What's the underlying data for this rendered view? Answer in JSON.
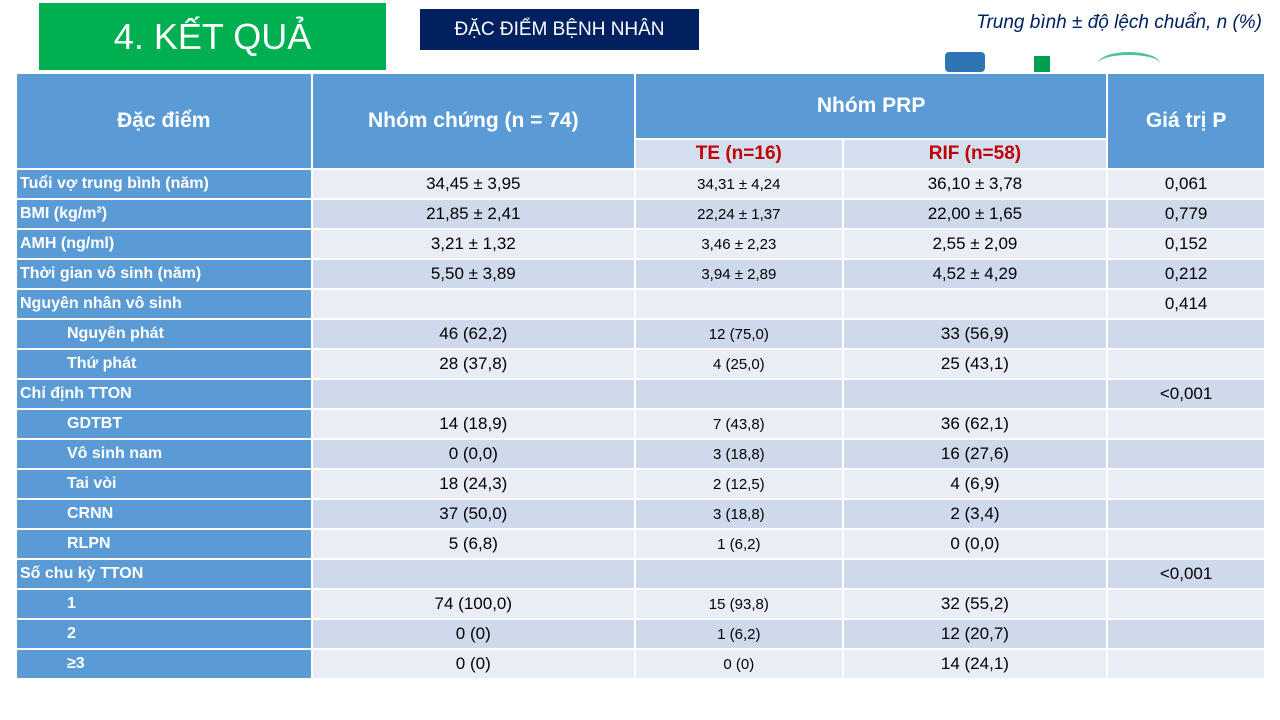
{
  "title": "4. KẾT QUẢ",
  "subtitle": "ĐẶC ĐIỂM BỆNH NHÂN",
  "note": "Trung bình ± độ lệch chuẩn, n (%)",
  "header": {
    "col1": "Đặc điểm",
    "col2": "Nhóm chứng (n = 74)",
    "group": "Nhóm PRP",
    "te": "TE (n=16)",
    "rif": "RIF (n=58)",
    "p": "Giá trị P"
  },
  "rows": [
    {
      "label": "Tuổi vợ trung bình (năm)",
      "control": "34,45 ± 3,95",
      "te": "34,31 ± 4,24",
      "rif": "36,10 ± 3,78",
      "p": "0,061"
    },
    {
      "label": "BMI (kg/m²)",
      "control": "21,85 ± 2,41",
      "te": "22,24 ± 1,37",
      "rif": "22,00 ± 1,65",
      "p": "0,779"
    },
    {
      "label": "AMH (ng/ml)",
      "control": "3,21 ± 1,32",
      "te": "3,46 ± 2,23",
      "rif": "2,55 ± 2,09",
      "p": "0,152"
    },
    {
      "label": "Thời gian vô sinh (năm)",
      "control": "5,50 ± 3,89",
      "te": "3,94 ± 2,89",
      "rif": "4,52 ± 4,29",
      "p": "0,212"
    },
    {
      "label": "Nguyên nhân vô sinh",
      "control": "",
      "te": "",
      "rif": "",
      "p": "0,414"
    },
    {
      "label": "Nguyên phát",
      "indent": true,
      "control": "46 (62,2)",
      "te": "12 (75,0)",
      "rif": "33 (56,9)",
      "p": ""
    },
    {
      "label": "Thứ phát",
      "indent": true,
      "control": "28 (37,8)",
      "te": "4 (25,0)",
      "rif": "25 (43,1)",
      "p": ""
    },
    {
      "label": "Chỉ định TTON",
      "control": "",
      "te": "",
      "rif": "",
      "p": "<0,001"
    },
    {
      "label": "GDTBT",
      "indent": true,
      "control": "14 (18,9)",
      "te": "7 (43,8)",
      "rif": "36 (62,1)",
      "p": ""
    },
    {
      "label": "Vô sinh nam",
      "indent": true,
      "control": "0 (0,0)",
      "te": "3 (18,8)",
      "rif": "16 (27,6)",
      "p": ""
    },
    {
      "label": "Tai vòi",
      "indent": true,
      "control": "18 (24,3)",
      "te": "2 (12,5)",
      "rif": "4 (6,9)",
      "p": ""
    },
    {
      "label": "CRNN",
      "indent": true,
      "control": "37 (50,0)",
      "te": "3 (18,8)",
      "rif": "2 (3,4)",
      "p": ""
    },
    {
      "label": "RLPN",
      "indent": true,
      "control": "5 (6,8)",
      "te": "1 (6,2)",
      "rif": "0 (0,0)",
      "p": ""
    },
    {
      "label": "Số chu kỳ TTON",
      "control": "",
      "te": "",
      "rif": "",
      "p": "<0,001"
    },
    {
      "label": "1",
      "indent": true,
      "control": "74 (100,0)",
      "te": "15 (93,8)",
      "rif": "32 (55,2)",
      "p": ""
    },
    {
      "label": "2",
      "indent": true,
      "control": "0 (0)",
      "te": "1 (6,2)",
      "rif": "12 (20,7)",
      "p": ""
    },
    {
      "label": "≥3",
      "indent": true,
      "control": "0 (0)",
      "te": "0 (0)",
      "rif": "14 (24,1)",
      "p": ""
    }
  ]
}
